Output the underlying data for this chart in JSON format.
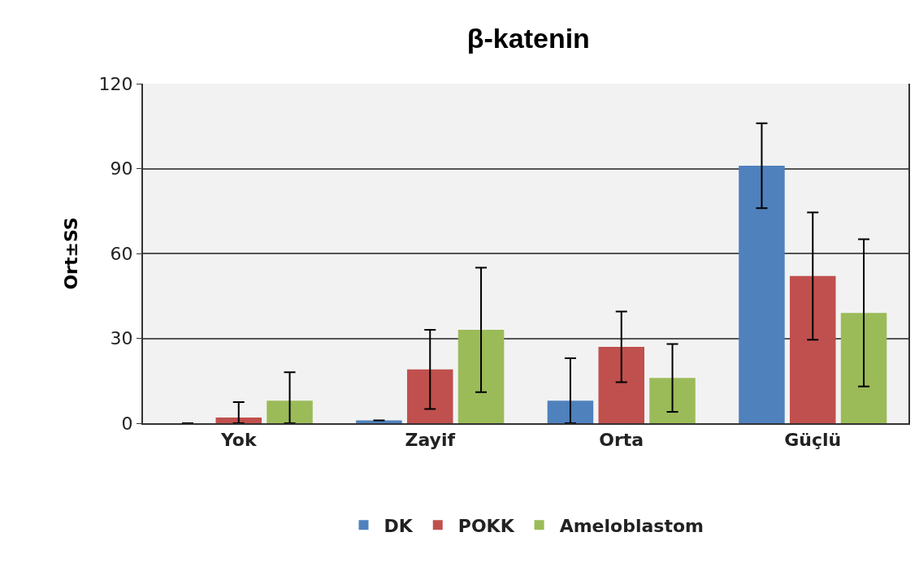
{
  "chart_data": {
    "type": "bar",
    "title": "β-katenin",
    "ylabel": "Ort±SS",
    "categories": [
      "Yok",
      "Zayif",
      "Orta",
      "Güçlü"
    ],
    "series": [
      {
        "name": "DK",
        "color": "#4f81bd",
        "values": [
          0,
          1,
          8,
          91
        ],
        "errors": [
          null,
          null,
          [
            0,
            23
          ],
          15
        ]
      },
      {
        "name": "POKK",
        "color": "#c0504d",
        "values": [
          2,
          19,
          27,
          52
        ],
        "errors": [
          [
            0,
            7.5
          ],
          14,
          12.5,
          22.5
        ]
      },
      {
        "name": "Ameloblastom",
        "color": "#9bbb59",
        "values": [
          8,
          33,
          16,
          39
        ],
        "errors": [
          [
            0,
            18
          ],
          22,
          12,
          26
        ]
      }
    ],
    "ylim": [
      0,
      120
    ],
    "yticks": [
      0,
      30,
      60,
      90,
      120
    ],
    "grid": "y",
    "legend": "bottom"
  }
}
